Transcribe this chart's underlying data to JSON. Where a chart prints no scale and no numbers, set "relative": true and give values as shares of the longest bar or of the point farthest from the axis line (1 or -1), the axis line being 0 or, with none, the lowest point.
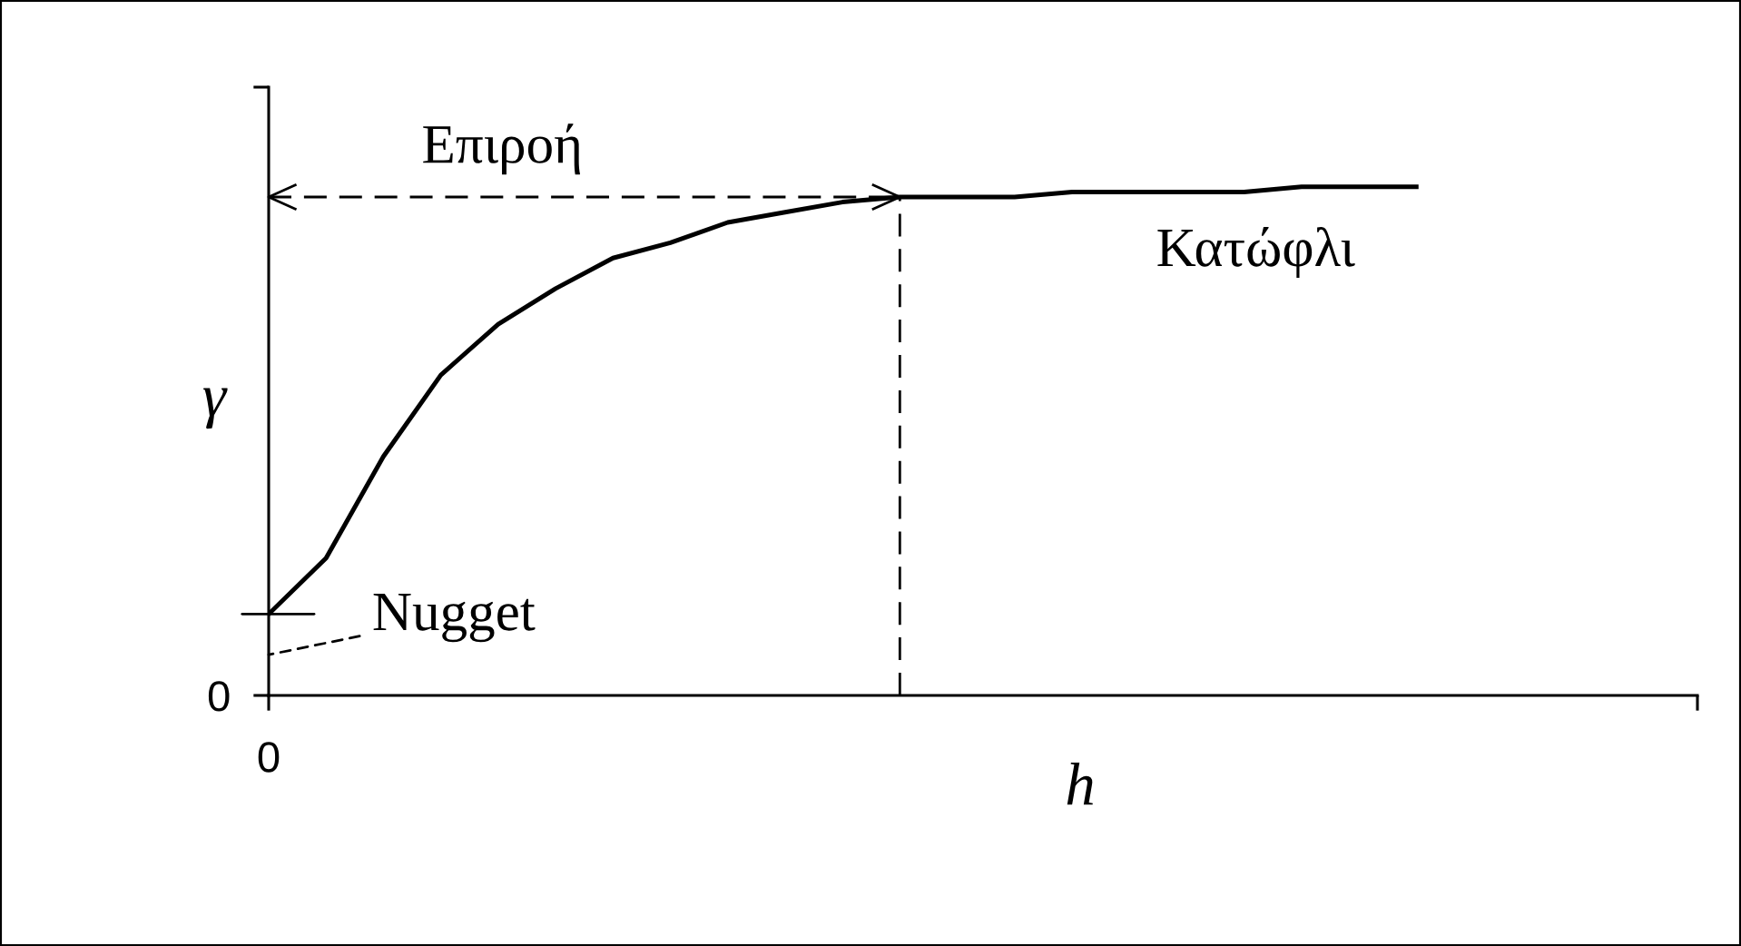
{
  "chart_data": {
    "type": "line",
    "relative": true,
    "xlabel": "h",
    "ylabel": "γ",
    "categories": [
      null,
      null,
      null,
      null,
      null,
      null,
      null,
      null,
      null,
      null,
      null,
      null,
      null,
      null,
      null,
      null,
      null,
      null,
      null,
      null,
      null
    ],
    "series": [
      {
        "color": "#000000",
        "values": [
          0.16,
          0.27,
          0.47,
          0.63,
          0.73,
          0.8,
          0.86,
          0.89,
          0.93,
          0.95,
          0.97,
          0.98,
          0.98,
          0.98,
          0.99,
          0.99,
          0.99,
          0.99,
          1.0,
          1.0,
          1.0
        ]
      }
    ],
    "ref_lines": [
      {
        "axis": "y",
        "value": 0.98,
        "label": "Επιροή",
        "color": "#000000",
        "line_style": "dashed"
      }
    ],
    "annotations": [
      "0",
      "0",
      "Nugget",
      "Κατώφλι"
    ],
    "marker": "none",
    "line_style": "solid"
  }
}
